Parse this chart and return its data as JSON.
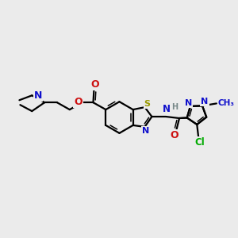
{
  "bg_color": "#ebebeb",
  "bond_color": "#000000",
  "lw": 1.6,
  "lw_dbl": 1.1,
  "figsize": [
    3.0,
    3.0
  ],
  "dpi": 100,
  "colors": {
    "N": "#1010cc",
    "O": "#cc1010",
    "S": "#999900",
    "Cl": "#00aa00",
    "H": "#778888",
    "C": "#000000"
  }
}
